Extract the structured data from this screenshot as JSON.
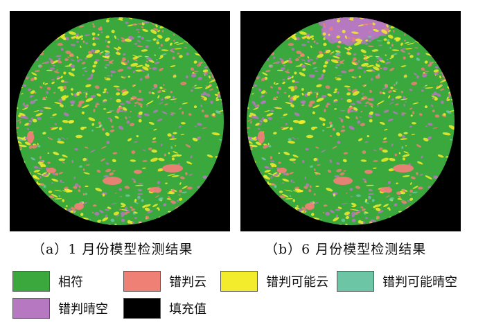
{
  "figures": [
    {
      "id": "a",
      "caption": "（a）1 月份模型检测结果",
      "has_cap_region": false
    },
    {
      "id": "b",
      "caption": "（b）6 月份模型检测结果",
      "has_cap_region": true
    }
  ],
  "legend": [
    {
      "label": "相符",
      "color": "#3aa83d"
    },
    {
      "label": "错判云",
      "color": "#ee8076"
    },
    {
      "label": "错判可能云",
      "color": "#f2ec2c"
    },
    {
      "label": "错判可能晴空",
      "color": "#6cc6a6"
    },
    {
      "label": "错判晴空",
      "color": "#b678c0"
    },
    {
      "label": "填充值",
      "color": "#000000"
    }
  ]
}
